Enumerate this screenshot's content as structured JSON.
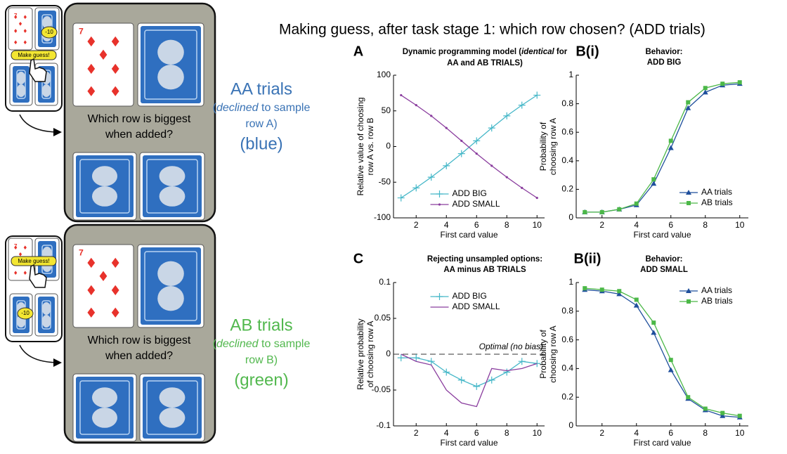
{
  "figure_title": "Making guess, after task stage 1: which row chosen? (ADD trials)",
  "illustration": {
    "card_rank": "7",
    "question": [
      "Which row is biggest",
      "when added?"
    ],
    "button": "Make guess!",
    "penalty": "-10",
    "conditions": [
      {
        "name": "AA trials",
        "note": [
          "(",
          "declined",
          " to sample",
          "row A)"
        ],
        "color_word": "(blue)",
        "color": "#3a73b5"
      },
      {
        "name": "AB trials",
        "note": [
          "(",
          "declined",
          " to sample",
          "row B)"
        ],
        "color_word": "(green)",
        "color": "#52b84e"
      }
    ]
  },
  "chart_data": [
    {
      "type": "line",
      "panel_label": "A",
      "title": [
        "Dynamic programming model (",
        "identical",
        " for",
        "AA and AB TRIALS)"
      ],
      "xlabel": "First card value",
      "ylabel": [
        "Relative value of choosing",
        "row A vs. row B"
      ],
      "x": [
        1,
        2,
        3,
        4,
        5,
        6,
        7,
        8,
        9,
        10
      ],
      "xlim": [
        0.5,
        10.5
      ],
      "xticks": [
        2,
        4,
        6,
        8,
        10
      ],
      "ylim": [
        -100,
        100
      ],
      "yticks": [
        -100,
        -50,
        0,
        50,
        100
      ],
      "legend": "lower center",
      "series": [
        {
          "name": "ADD BIG",
          "color": "#45b7c8",
          "marker": "+",
          "values": [
            -72,
            -58,
            -43,
            -27,
            -10,
            8,
            26,
            43,
            58,
            72
          ]
        },
        {
          "name": "ADD SMALL",
          "color": "#8a3d9e",
          "marker": ".",
          "values": [
            72,
            58,
            43,
            26,
            8,
            -10,
            -27,
            -43,
            -58,
            -72
          ]
        }
      ]
    },
    {
      "type": "line",
      "panel_label": "B(i)",
      "title": [
        "Behavior:",
        "ADD BIG"
      ],
      "xlabel": "First card value",
      "ylabel": [
        "Probability of",
        "choosing row A"
      ],
      "x": [
        1,
        2,
        3,
        4,
        5,
        6,
        7,
        8,
        9,
        10
      ],
      "xlim": [
        0.5,
        10.5
      ],
      "xticks": [
        2,
        4,
        6,
        8,
        10
      ],
      "ylim": [
        0,
        1
      ],
      "yticks": [
        0,
        0.2,
        0.4,
        0.6,
        0.8,
        1
      ],
      "legend": "lower right",
      "series": [
        {
          "name": "AA trials",
          "color": "#1f4f9c",
          "marker": "^",
          "values": [
            0.04,
            0.04,
            0.06,
            0.09,
            0.24,
            0.49,
            0.77,
            0.88,
            0.93,
            0.94
          ]
        },
        {
          "name": "AB trials",
          "color": "#4cb848",
          "marker": "s",
          "values": [
            0.04,
            0.04,
            0.06,
            0.1,
            0.27,
            0.54,
            0.81,
            0.91,
            0.94,
            0.95
          ]
        }
      ]
    },
    {
      "type": "line",
      "panel_label": "C",
      "title": [
        "Rejecting unsampled options:",
        "AA minus AB TRIALS"
      ],
      "xlabel": "First card value",
      "ylabel": [
        "Relative probability",
        "of choosing row A"
      ],
      "x": [
        1,
        2,
        3,
        4,
        5,
        6,
        7,
        8,
        9,
        10
      ],
      "xlim": [
        0.5,
        10.5
      ],
      "xticks": [
        2,
        4,
        6,
        8,
        10
      ],
      "ylim": [
        -0.1,
        0.1
      ],
      "yticks": [
        -0.1,
        -0.05,
        0,
        0.05,
        0.1
      ],
      "legend": "upper center",
      "reference_line": {
        "value": 0,
        "label": "Optimal (no bias)"
      },
      "series": [
        {
          "name": "ADD BIG",
          "color": "#45b7c8",
          "marker": "+",
          "values": [
            -0.005,
            -0.005,
            -0.01,
            -0.025,
            -0.036,
            -0.045,
            -0.036,
            -0.025,
            -0.01,
            -0.013
          ]
        },
        {
          "name": "ADD SMALL",
          "color": "#8a3d9e",
          "values": [
            0,
            -0.01,
            -0.015,
            -0.05,
            -0.068,
            -0.073,
            -0.02,
            -0.023,
            -0.02,
            -0.013
          ]
        }
      ]
    },
    {
      "type": "line",
      "panel_label": "B(ii)",
      "title": [
        "Behavior:",
        "ADD SMALL"
      ],
      "xlabel": "First card value",
      "ylabel": [
        "Probability of",
        "choosing row A"
      ],
      "x": [
        1,
        2,
        3,
        4,
        5,
        6,
        7,
        8,
        9,
        10
      ],
      "xlim": [
        0.5,
        10.5
      ],
      "xticks": [
        2,
        4,
        6,
        8,
        10
      ],
      "ylim": [
        0,
        1
      ],
      "yticks": [
        0,
        0.2,
        0.4,
        0.6,
        0.8,
        1
      ],
      "legend": "upper right",
      "series": [
        {
          "name": "AA trials",
          "color": "#1f4f9c",
          "marker": "^",
          "values": [
            0.95,
            0.94,
            0.92,
            0.84,
            0.65,
            0.39,
            0.19,
            0.11,
            0.07,
            0.06
          ]
        },
        {
          "name": "AB trials",
          "color": "#4cb848",
          "marker": "s",
          "values": [
            0.96,
            0.95,
            0.94,
            0.88,
            0.72,
            0.46,
            0.2,
            0.12,
            0.09,
            0.07
          ]
        }
      ]
    }
  ]
}
